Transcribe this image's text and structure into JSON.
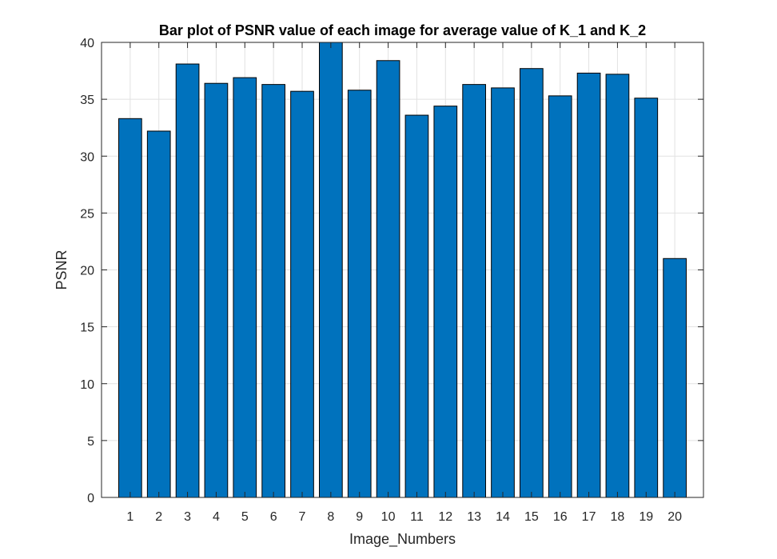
{
  "chart_data": {
    "type": "bar",
    "title": "Bar plot of PSNR value of each image for average value of K_1 and K_2",
    "xlabel": "Image_Numbers",
    "ylabel": "PSNR",
    "categories": [
      "1",
      "2",
      "3",
      "4",
      "5",
      "6",
      "7",
      "8",
      "9",
      "10",
      "11",
      "12",
      "13",
      "14",
      "15",
      "16",
      "17",
      "18",
      "19",
      "20"
    ],
    "values": [
      33.3,
      32.2,
      38.1,
      36.4,
      36.9,
      36.3,
      35.7,
      40.0,
      35.8,
      38.4,
      33.6,
      34.4,
      36.3,
      36.0,
      37.7,
      35.3,
      37.3,
      37.2,
      35.1,
      21.0
    ],
    "ylim": [
      0,
      40
    ],
    "yticks": [
      0,
      5,
      10,
      15,
      20,
      25,
      30,
      35,
      40
    ],
    "grid": true,
    "bar_color": "#0072BD",
    "bar_edge_color": "#000000"
  }
}
